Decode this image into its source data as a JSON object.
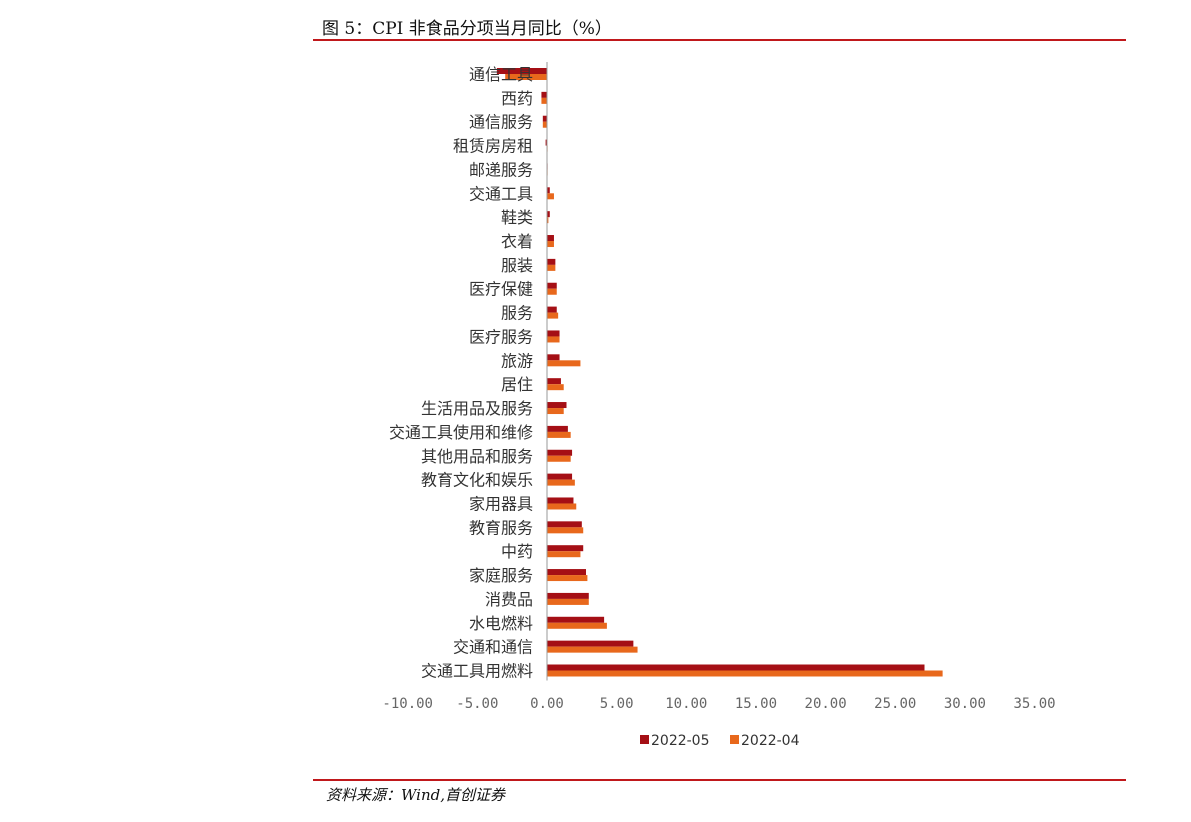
{
  "figure": {
    "title": "图 5：CPI 非食品分项当月同比（%）",
    "source": "资料来源：Wind,首创证券"
  },
  "colors": {
    "rule": "#c0181b",
    "series_2022_05": "#a50f15",
    "series_2022_04": "#e8681c"
  },
  "chart_data": {
    "type": "bar",
    "orientation": "horizontal",
    "title": "",
    "xlabel": "",
    "ylabel": "",
    "xlim": [
      -10,
      35
    ],
    "x_ticks": [
      -10,
      -5,
      0,
      5,
      10,
      15,
      20,
      25,
      30,
      35
    ],
    "x_tick_labels": [
      "-10.00",
      "-5.00",
      "0.00",
      "5.00",
      "10.00",
      "15.00",
      "20.00",
      "25.00",
      "30.00",
      "35.00"
    ],
    "grid": false,
    "legend_position": "bottom",
    "categories": [
      "通信工具",
      "西药",
      "通信服务",
      "租赁房房租",
      "邮递服务",
      "交通工具",
      "鞋类",
      "衣着",
      "服装",
      "医疗保健",
      "服务",
      "医疗服务",
      "旅游",
      "居住",
      "生活用品及服务",
      "交通工具使用和维修",
      "其他用品和服务",
      "教育文化和娱乐",
      "家用器具",
      "教育服务",
      "中药",
      "家庭服务",
      "消费品",
      "水电燃料",
      "交通和通信",
      "交通工具用燃料"
    ],
    "series": [
      {
        "name": "2022-05",
        "color": "#a50f15",
        "values": [
          -3.6,
          -0.4,
          -0.3,
          -0.1,
          0.0,
          0.2,
          0.2,
          0.5,
          0.6,
          0.7,
          0.7,
          0.9,
          0.9,
          1.0,
          1.4,
          1.5,
          1.8,
          1.8,
          1.9,
          2.5,
          2.6,
          2.8,
          3.0,
          4.1,
          6.2,
          27.1
        ]
      },
      {
        "name": "2022-04",
        "color": "#e8681c",
        "values": [
          -3.0,
          -0.4,
          -0.3,
          0.0,
          0.0,
          0.5,
          0.1,
          0.5,
          0.6,
          0.7,
          0.8,
          0.9,
          2.4,
          1.2,
          1.2,
          1.7,
          1.7,
          2.0,
          2.1,
          2.6,
          2.4,
          2.9,
          3.0,
          4.3,
          6.5,
          28.4
        ]
      }
    ]
  }
}
